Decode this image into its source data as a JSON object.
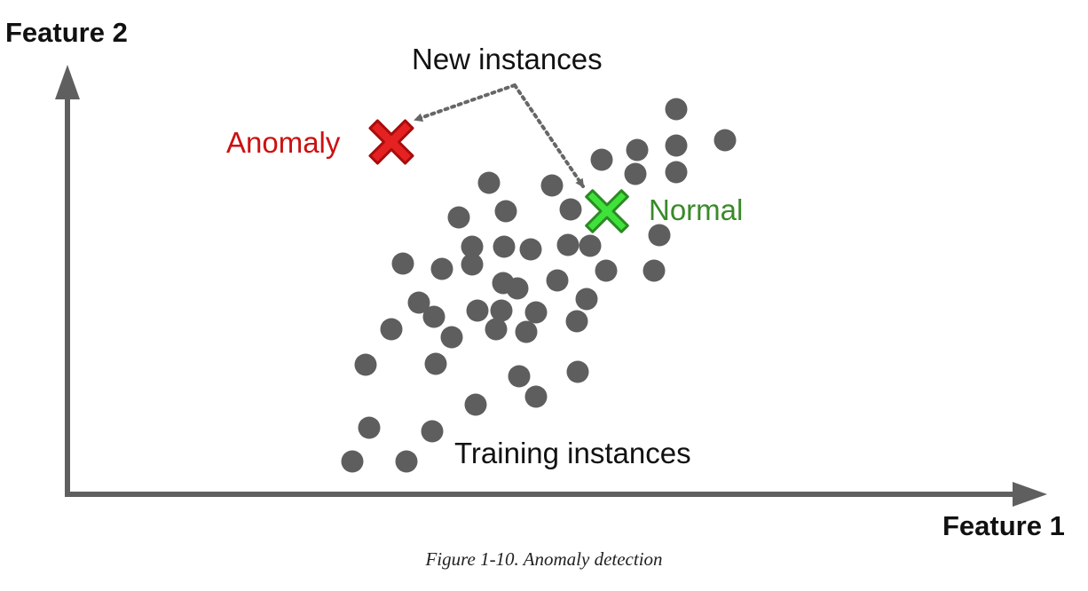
{
  "figure": {
    "y_axis_label": "Feature 2",
    "x_axis_label": "Feature 1",
    "new_instances_label": "New instances",
    "anomaly_label": "Anomaly",
    "normal_label": "Normal",
    "training_label": "Training instances",
    "caption": "Figure 1-10. Anomaly detection"
  },
  "colors": {
    "axis": "#5f5f5f",
    "training_point": "#5e5e5e",
    "anomaly": "#cc1111",
    "anomaly_fill": "#e52121",
    "normal_text": "#3a8a2a",
    "normal_fill": "#3fe23a",
    "normal_stroke": "#2b8a23",
    "arrow": "#666666"
  }
}
